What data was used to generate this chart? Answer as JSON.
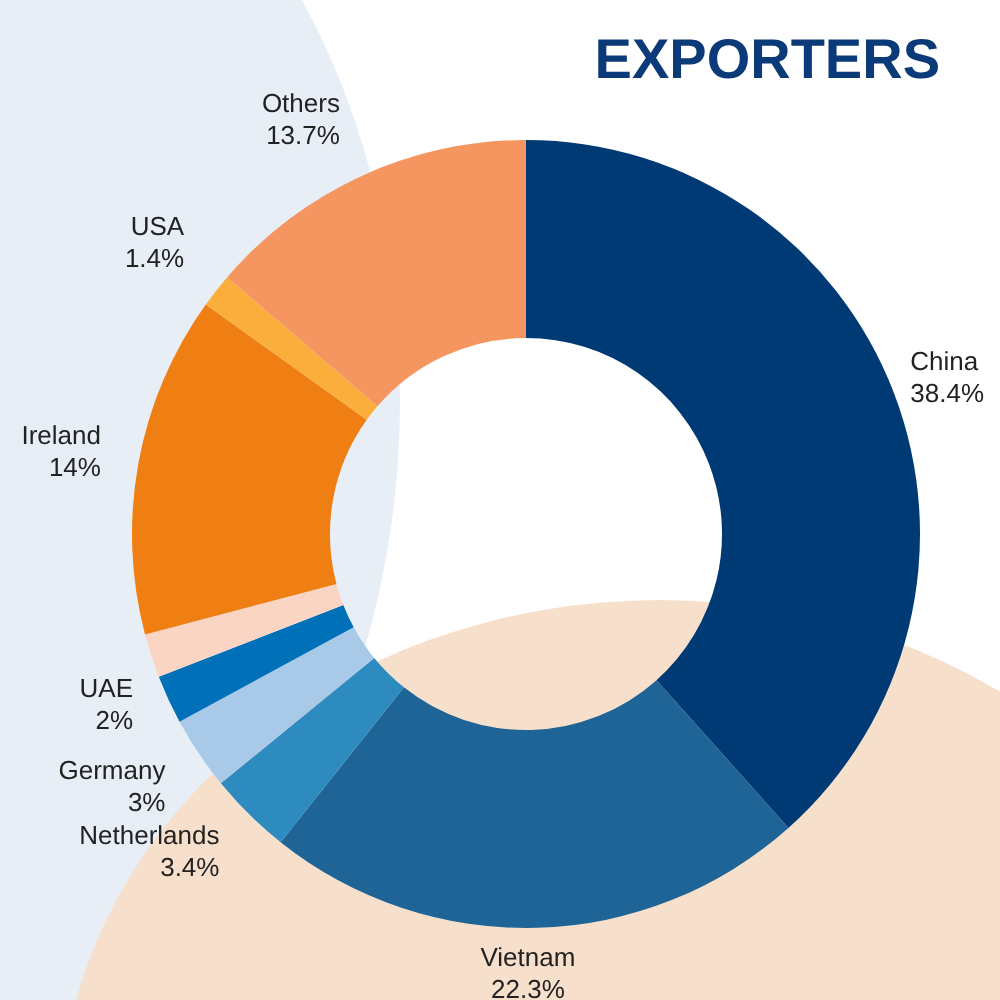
{
  "chart_data": {
    "type": "donut",
    "title": "EXPORTERS",
    "categories": [
      "China",
      "Vietnam",
      "Netherlands",
      "Germany",
      "UAE",
      null,
      "Ireland",
      "USA",
      "Others"
    ],
    "values": [
      38.4,
      22.3,
      3.4,
      3,
      2,
      1.8,
      14,
      1.4,
      13.7
    ],
    "value_labels": [
      "38.4%",
      "22.3%",
      "3.4%",
      "3%",
      "2%",
      null,
      "14%",
      "1.4%",
      "13.7%"
    ],
    "colors": [
      "#003a75",
      "#1f6496",
      "#2e8bbf",
      "#a9c9e8",
      "#0070b8",
      "#fbd5c3",
      "#f07f13",
      "#fbae3c",
      "#f59661"
    ],
    "legend": false
  }
}
